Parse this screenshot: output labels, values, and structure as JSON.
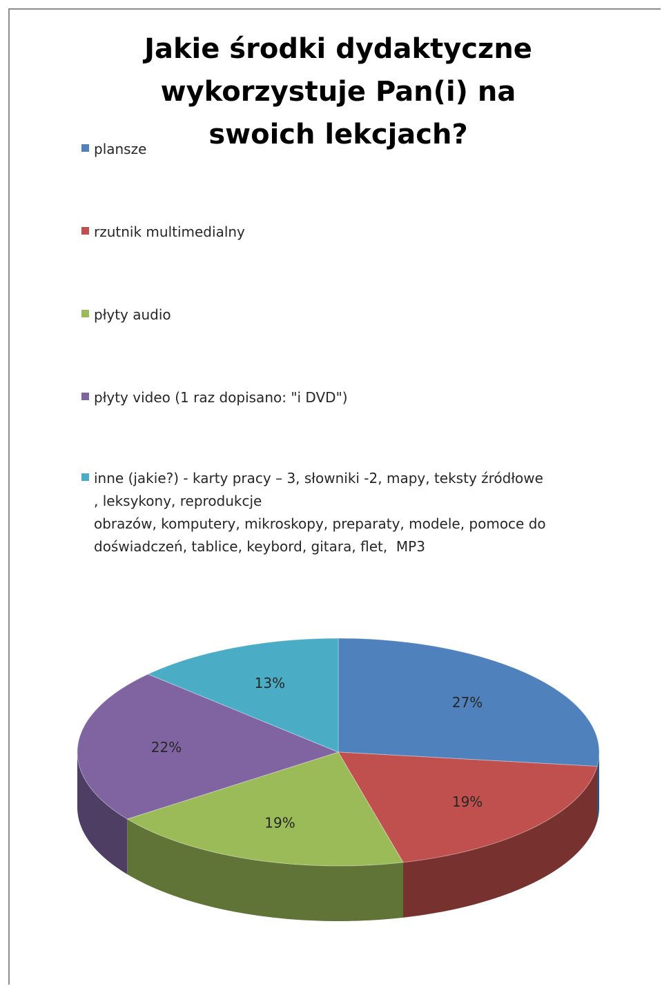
{
  "chart_data": {
    "type": "pie",
    "title": "Jakie środki dydaktyczne wykorzystuje Pan(i) na swoich lekcjach?",
    "legend_position": "top",
    "style": "3d",
    "slices": [
      {
        "label": "plansze",
        "value": 27,
        "display": "27%",
        "color": "#4F81BD"
      },
      {
        "label": "rzutnik multimedialny",
        "value": 19,
        "display": "19%",
        "color": "#C0504D"
      },
      {
        "label": "płyty audio",
        "value": 19,
        "display": "19%",
        "color": "#9BBB59"
      },
      {
        "label": "płyty video (1 raz dopisano: \"i DVD\")",
        "value": 22,
        "display": "22%",
        "color": "#8064A2"
      },
      {
        "label": "inne (jakie?) - karty pracy – 3, słowniki -2, mapy, teksty źródłowe\n, leksykony, reprodukcje\nobrazów, komputery, mikroskopy, preparaty, modele, pomoce do\ndoświadczeń, tablice, keybord, gitara, flet,  MP3",
        "value": 13,
        "display": "13%",
        "color": "#4BACC6"
      }
    ]
  }
}
